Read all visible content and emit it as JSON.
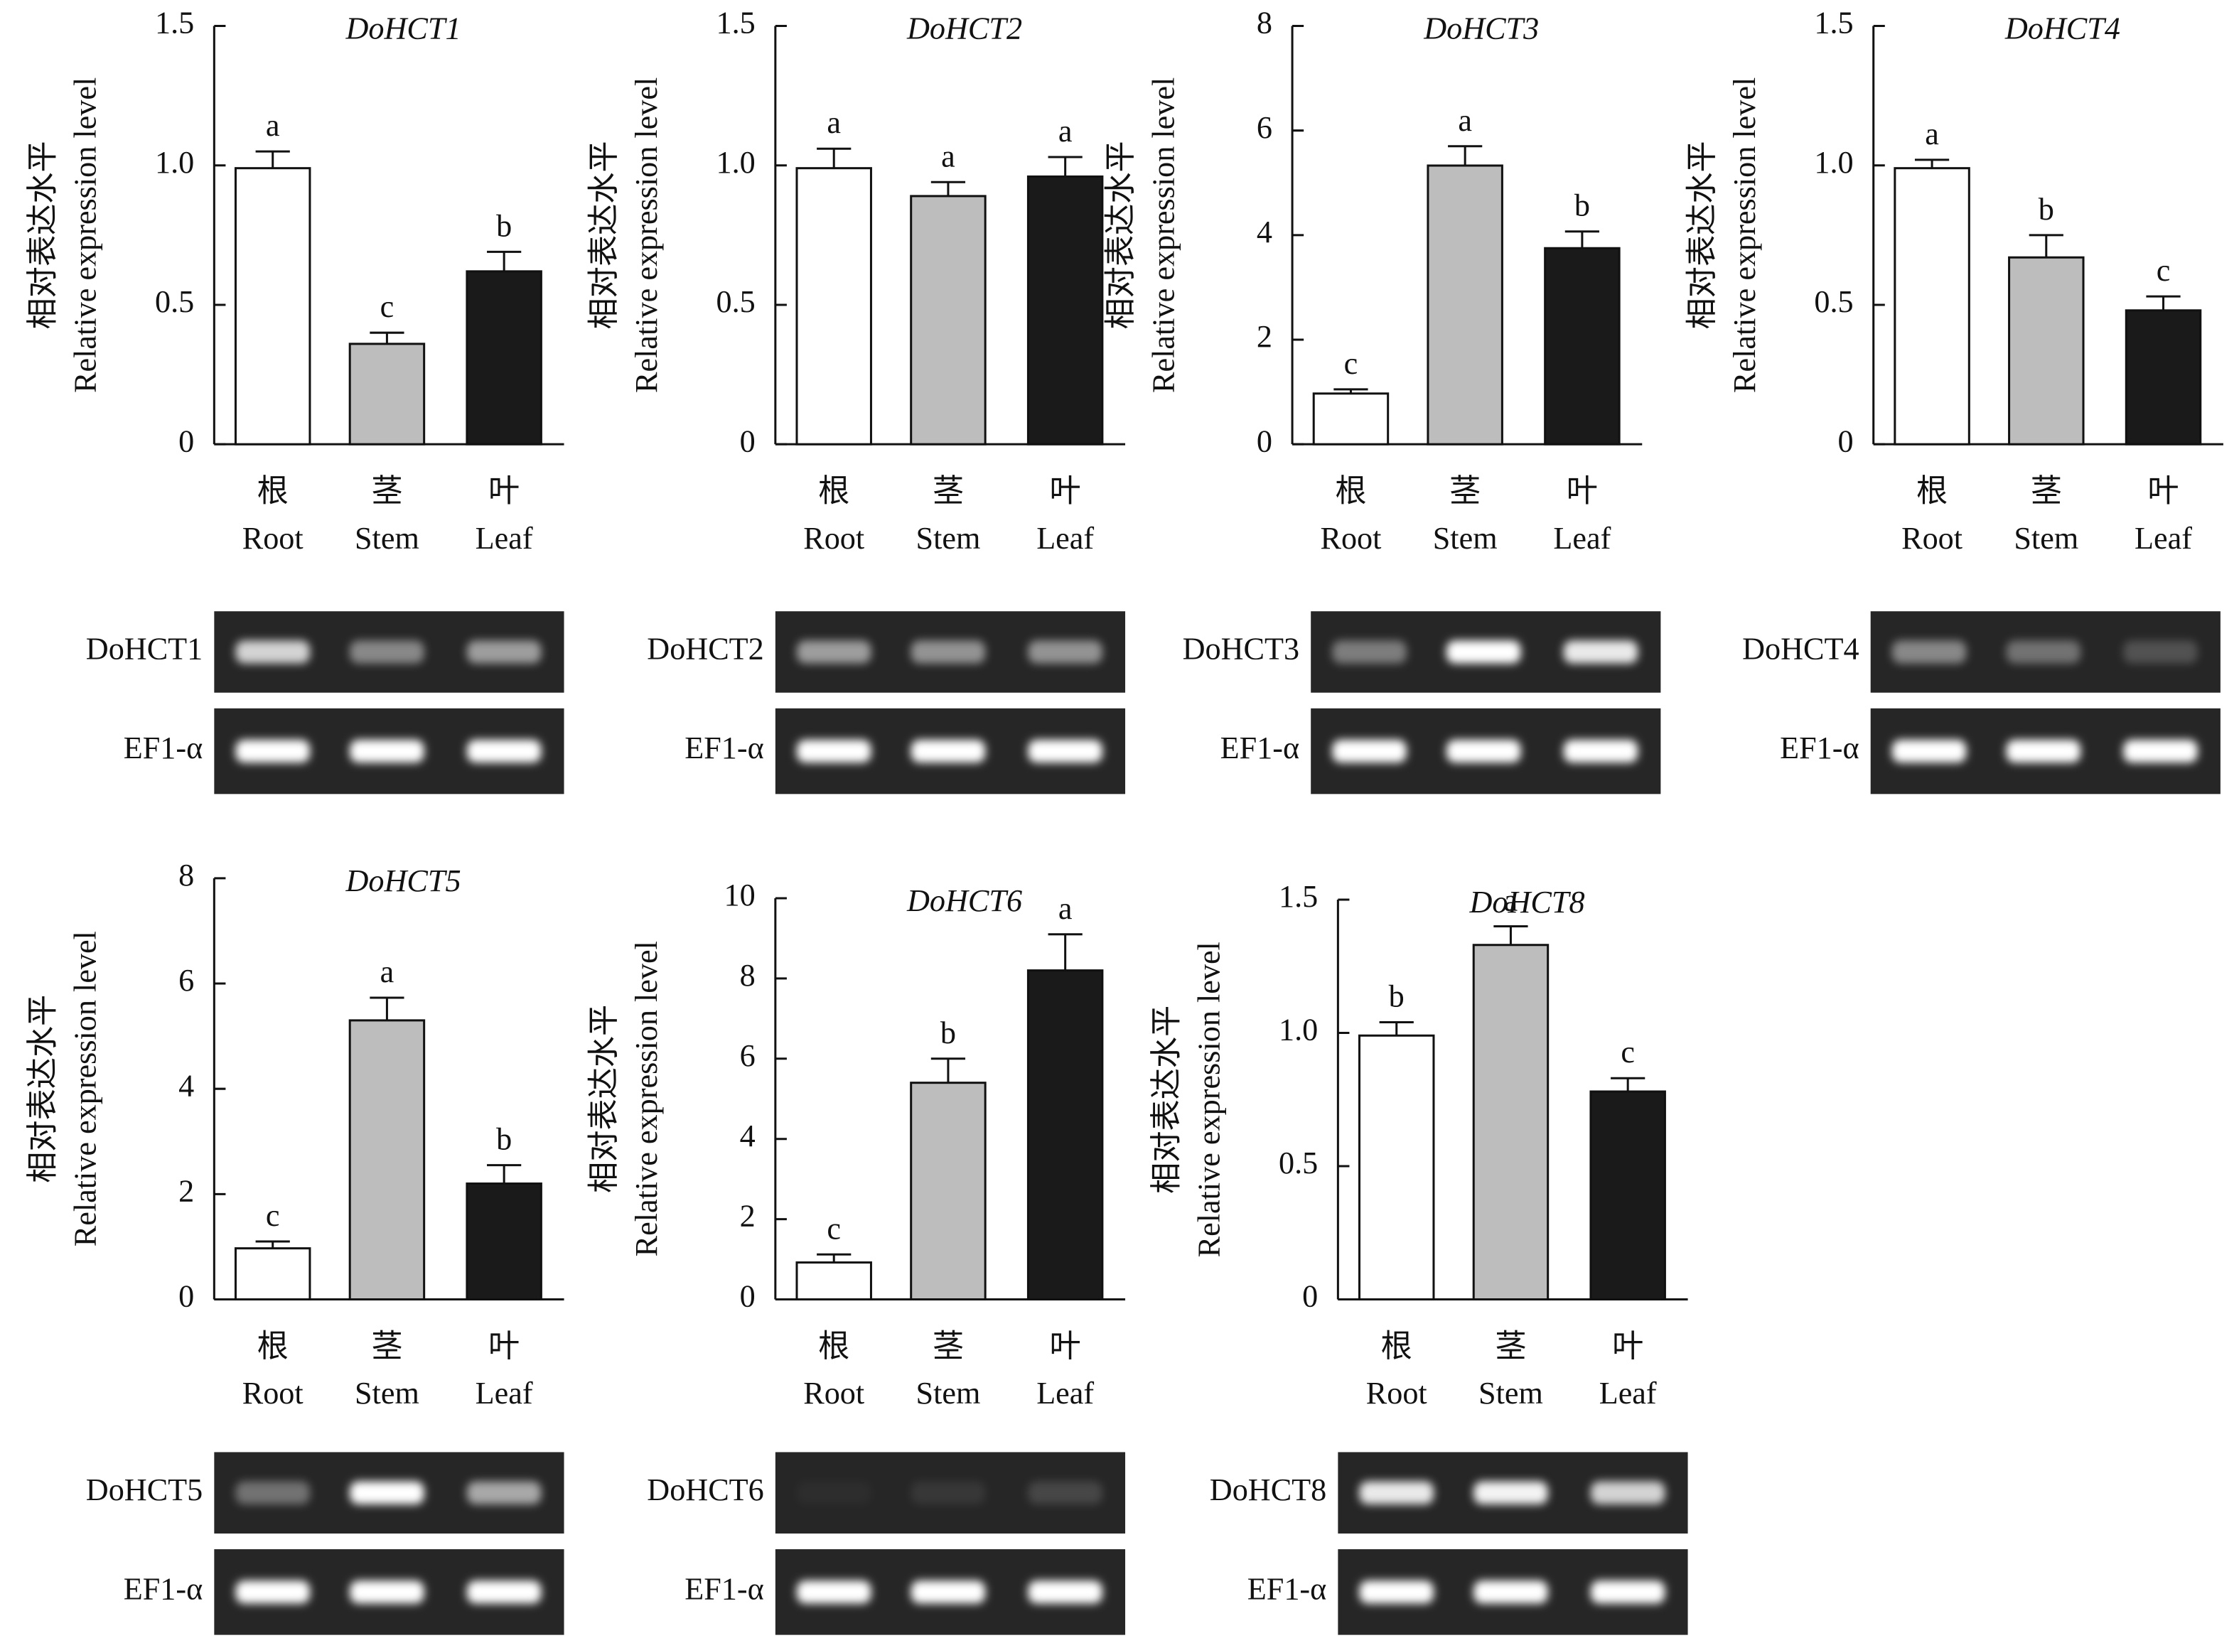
{
  "chart_data": [
    {
      "type": "bar",
      "title": "DoHCT1",
      "y_label": [
        "相对表达水平",
        "Relative expression level"
      ],
      "categories_cn": [
        "根",
        "茎",
        "叶"
      ],
      "categories": [
        "Root",
        "Stem",
        "Leaf"
      ],
      "colors": [
        "#ffffff",
        "#bdbdbd",
        "#1a1a1a"
      ],
      "values": [
        0.99,
        0.36,
        0.62
      ],
      "errors": [
        0.06,
        0.04,
        0.07
      ],
      "annotations": [
        "a",
        "c",
        "b"
      ],
      "ylim": [
        0,
        1.5
      ],
      "yticks": [
        0,
        0.5,
        {
          "value": 1,
          "label": "1.0"
        },
        1.5
      ],
      "gel_labels": [
        "DoHCT1",
        "EF1-α"
      ]
    },
    {
      "type": "bar",
      "title": "DoHCT2",
      "y_label": [
        "相对表达水平",
        "Relative expression level"
      ],
      "categories_cn": [
        "根",
        "茎",
        "叶"
      ],
      "categories": [
        "Root",
        "Stem",
        "Leaf"
      ],
      "colors": [
        "#ffffff",
        "#bdbdbd",
        "#1a1a1a"
      ],
      "values": [
        0.99,
        0.89,
        0.96
      ],
      "errors": [
        0.07,
        0.05,
        0.07
      ],
      "annotations": [
        "a",
        "a",
        "a"
      ],
      "ylim": [
        0,
        1.5
      ],
      "yticks": [
        0,
        0.5,
        {
          "value": 1,
          "label": "1.0"
        },
        1.5
      ],
      "gel_labels": [
        "DoHCT2",
        "EF1-α"
      ]
    },
    {
      "type": "bar",
      "title": "DoHCT3",
      "y_label": [
        "相对表达水平",
        "Relative expression level"
      ],
      "categories_cn": [
        "根",
        "茎",
        "叶"
      ],
      "categories": [
        "Root",
        "Stem",
        "Leaf"
      ],
      "colors": [
        "#ffffff",
        "#bdbdbd",
        "#1a1a1a"
      ],
      "values": [
        0.97,
        5.33,
        3.75
      ],
      "errors": [
        0.08,
        0.37,
        0.32
      ],
      "annotations": [
        "c",
        "a",
        "b"
      ],
      "ylim": [
        0,
        8
      ],
      "yticks": [
        0,
        2,
        4,
        6,
        8
      ],
      "gel_labels": [
        "DoHCT3",
        "EF1-α"
      ]
    },
    {
      "type": "bar",
      "title": "DoHCT4",
      "y_label": [
        "相对表达水平",
        "Relative expression level"
      ],
      "categories_cn": [
        "根",
        "茎",
        "叶"
      ],
      "categories": [
        "Root",
        "Stem",
        "Leaf"
      ],
      "colors": [
        "#ffffff",
        "#bdbdbd",
        "#1a1a1a"
      ],
      "values": [
        0.99,
        0.67,
        0.48
      ],
      "errors": [
        0.03,
        0.08,
        0.05
      ],
      "annotations": [
        "a",
        "b",
        "c"
      ],
      "ylim": [
        0,
        1.5
      ],
      "yticks": [
        0,
        0.5,
        {
          "value": 1,
          "label": "1.0"
        },
        1.5
      ],
      "gel_labels": [
        "DoHCT4",
        "EF1-α"
      ]
    },
    {
      "type": "bar",
      "title": "DoHCT5",
      "y_label": [
        "相对表达水平",
        "Relative expression level"
      ],
      "categories_cn": [
        "根",
        "茎",
        "叶"
      ],
      "categories": [
        "Root",
        "Stem",
        "Leaf"
      ],
      "colors": [
        "#ffffff",
        "#bdbdbd",
        "#1a1a1a"
      ],
      "values": [
        0.97,
        5.3,
        2.2
      ],
      "errors": [
        0.13,
        0.43,
        0.35
      ],
      "annotations": [
        "c",
        "a",
        "b"
      ],
      "ylim": [
        0,
        8
      ],
      "yticks": [
        0,
        2,
        4,
        6,
        8
      ],
      "gel_labels": [
        "DoHCT5",
        "EF1-α"
      ]
    },
    {
      "type": "bar",
      "title": "DoHCT6",
      "y_label": [
        "相对表达水平",
        "Relative expression level"
      ],
      "categories_cn": [
        "根",
        "茎",
        "叶"
      ],
      "categories": [
        "Root",
        "Stem",
        "Leaf"
      ],
      "colors": [
        "#ffffff",
        "#bdbdbd",
        "#1a1a1a"
      ],
      "values": [
        0.92,
        5.4,
        8.2
      ],
      "errors": [
        0.2,
        0.6,
        0.9
      ],
      "annotations": [
        "c",
        "b",
        "a"
      ],
      "ylim": [
        0,
        10
      ],
      "yticks": [
        0,
        2,
        4,
        6,
        8,
        10
      ],
      "gel_labels": [
        "DoHCT6",
        "EF1-α"
      ]
    },
    {
      "type": "bar",
      "title": "DoHCT8",
      "y_label": [
        "相对表达水平",
        "Relative expression level"
      ],
      "categories_cn": [
        "根",
        "茎",
        "叶"
      ],
      "categories": [
        "Root",
        "Stem",
        "Leaf"
      ],
      "colors": [
        "#ffffff",
        "#bdbdbd",
        "#1a1a1a"
      ],
      "values": [
        0.99,
        1.33,
        0.78
      ],
      "errors": [
        0.05,
        0.07,
        0.05
      ],
      "annotations": [
        "b",
        "a",
        "c"
      ],
      "ylim": [
        0,
        1.5
      ],
      "yticks": [
        0,
        0.5,
        {
          "value": 1,
          "label": "1.0"
        },
        1.5
      ],
      "gel_labels": [
        "DoHCT8",
        "EF1-α"
      ]
    }
  ]
}
